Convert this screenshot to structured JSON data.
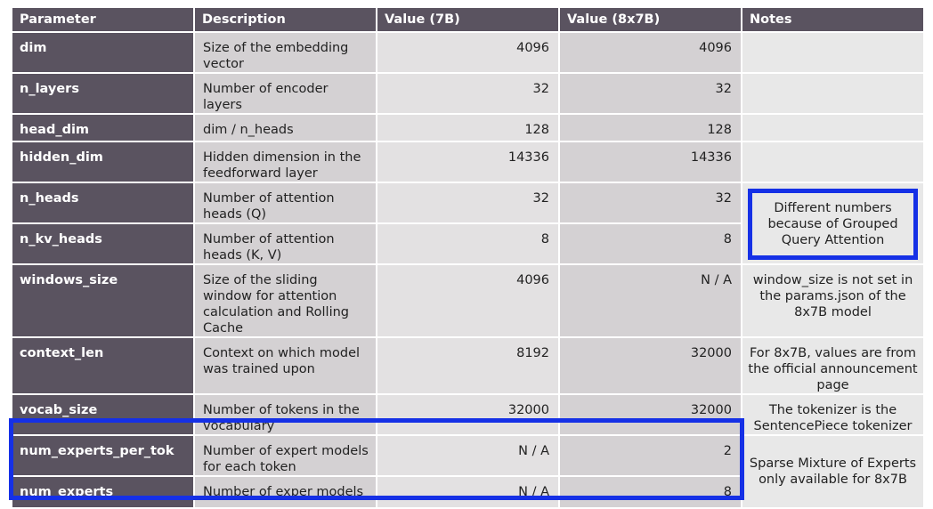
{
  "columns": [
    "Parameter",
    "Description",
    "Value (7B)",
    "Value (8x7B)",
    "Notes"
  ],
  "rows": [
    {
      "param": "dim",
      "desc": "Size of the embedding vector",
      "v7": "4096",
      "v8": "4096"
    },
    {
      "param": "n_layers",
      "desc": "Number of encoder layers",
      "v7": "32",
      "v8": "32"
    },
    {
      "param": "head_dim",
      "desc": "dim / n_heads",
      "v7": "128",
      "v8": "128"
    },
    {
      "param": "hidden_dim",
      "desc": "Hidden dimension in the feedforward layer",
      "v7": "14336",
      "v8": "14336"
    },
    {
      "param": "n_heads",
      "desc": "Number of attention heads (Q)",
      "v7": "32",
      "v8": "32"
    },
    {
      "param": "n_kv_heads",
      "desc": "Number of attention heads (K, V)",
      "v7": "8",
      "v8": "8"
    },
    {
      "param": "windows_size",
      "desc": "Size of the sliding window for attention calculation and Rolling Cache",
      "v7": "4096",
      "v8": "N / A"
    },
    {
      "param": "context_len",
      "desc": "Context on which model was trained upon",
      "v7": "8192",
      "v8": "32000"
    },
    {
      "param": "vocab_size",
      "desc": "Number of tokens in the vocabulary",
      "v7": "32000",
      "v8": "32000"
    },
    {
      "param": "num_experts_per_tok",
      "desc": "Number of expert models for each token",
      "v7": "N / A",
      "v8": "2"
    },
    {
      "param": "num_experts",
      "desc": "Number of exper models",
      "v7": "N / A",
      "v8": "8"
    }
  ],
  "notes": {
    "gqa": "Different numbers because of Grouped Query Attention",
    "window": "window_size is not set in the params.json of the 8x7B model",
    "context": "For 8x7B, values are from the official announcement page",
    "vocab": "The tokenizer is the SentencePiece tokenizer",
    "moe": "Sparse Mixture of Experts only available for 8x7B"
  },
  "highlight_color": "#1530e6"
}
